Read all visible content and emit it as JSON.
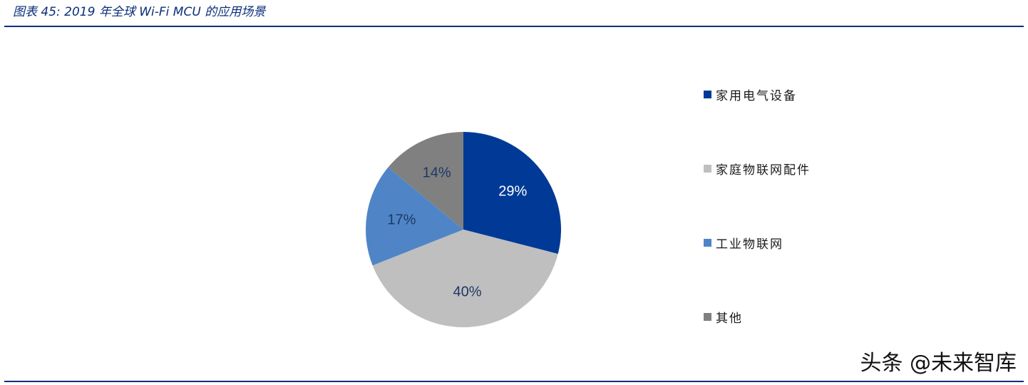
{
  "figure": {
    "title": "图表 45:  2019 年全球 Wi-Fi MCU 的应用场景"
  },
  "chart_data": {
    "type": "pie",
    "title": "",
    "slices": [
      {
        "label": "家用电气设备",
        "value": 29,
        "display": "29%",
        "color": "#003a96",
        "label_color": "#ffffff"
      },
      {
        "label": "家庭物联网配件",
        "value": 40,
        "display": "40%",
        "color": "#bfbfbf",
        "label_color": "#1f3864"
      },
      {
        "label": "工业物联网",
        "value": 17,
        "display": "17%",
        "color": "#4f85c6",
        "label_color": "#1f3864"
      },
      {
        "label": "其他",
        "value": 14,
        "display": "14%",
        "color": "#808080",
        "label_color": "#1f3864"
      }
    ],
    "start": "12 o'clock",
    "direction": "clockwise",
    "legend_position": "right"
  },
  "watermark": {
    "text": "头条 @未来智库"
  }
}
